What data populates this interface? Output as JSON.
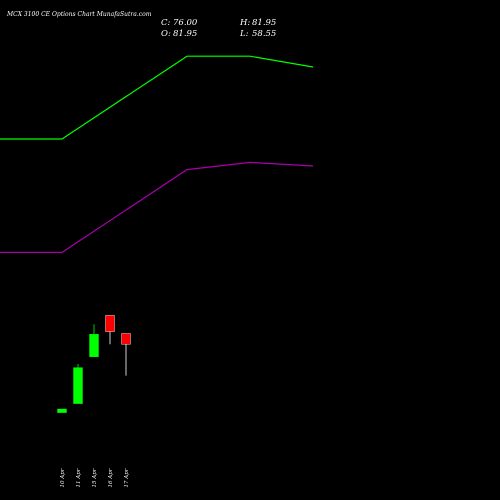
{
  "header": {
    "title": "MCX  3100  CE Options  Chart MunafaSutra.com",
    "close_label": "C:",
    "close_value": "76.00",
    "high_label": "H:",
    "high_value": "81.95",
    "open_label": "O:",
    "open_value": "81.95",
    "low_label": "L:",
    "low_value": "58.55"
  },
  "colors": {
    "background": "#000000",
    "bullish": "#00ff00",
    "bearish": "#ff0000",
    "upper_band": "#00ff00",
    "lower_band": "#aa00aa",
    "text": "#ffffff"
  },
  "chart_data": {
    "type": "candlestick",
    "categories": [
      "10 Apr",
      "11 Apr",
      "15 Apr",
      "16 Apr",
      "17 Apr"
    ],
    "candles": [
      {
        "date": "10 Apr",
        "open": 40.0,
        "high": 40.0,
        "low": 38.0,
        "close": 38.0,
        "direction": "up"
      },
      {
        "date": "11 Apr",
        "open": 43.0,
        "high": 65.0,
        "low": 43.0,
        "close": 63.0,
        "direction": "up"
      },
      {
        "date": "15 Apr",
        "open": 69.0,
        "high": 87.0,
        "low": 69.0,
        "close": 81.5,
        "direction": "up"
      },
      {
        "date": "16 Apr",
        "open": 92.0,
        "high": 92.0,
        "low": 76.0,
        "close": 83.0,
        "direction": "down"
      },
      {
        "date": "17 Apr",
        "open": 81.95,
        "high": 81.95,
        "low": 58.55,
        "close": 76.0,
        "direction": "down"
      }
    ],
    "overlays": [
      {
        "color": "#00ff00",
        "values": [
          190,
          190,
          236,
          236,
          230
        ]
      },
      {
        "color": "#aa00aa",
        "values": [
          127,
          127,
          173,
          177,
          175
        ]
      }
    ],
    "y_range": [
      20,
      245
    ],
    "grid": false
  }
}
